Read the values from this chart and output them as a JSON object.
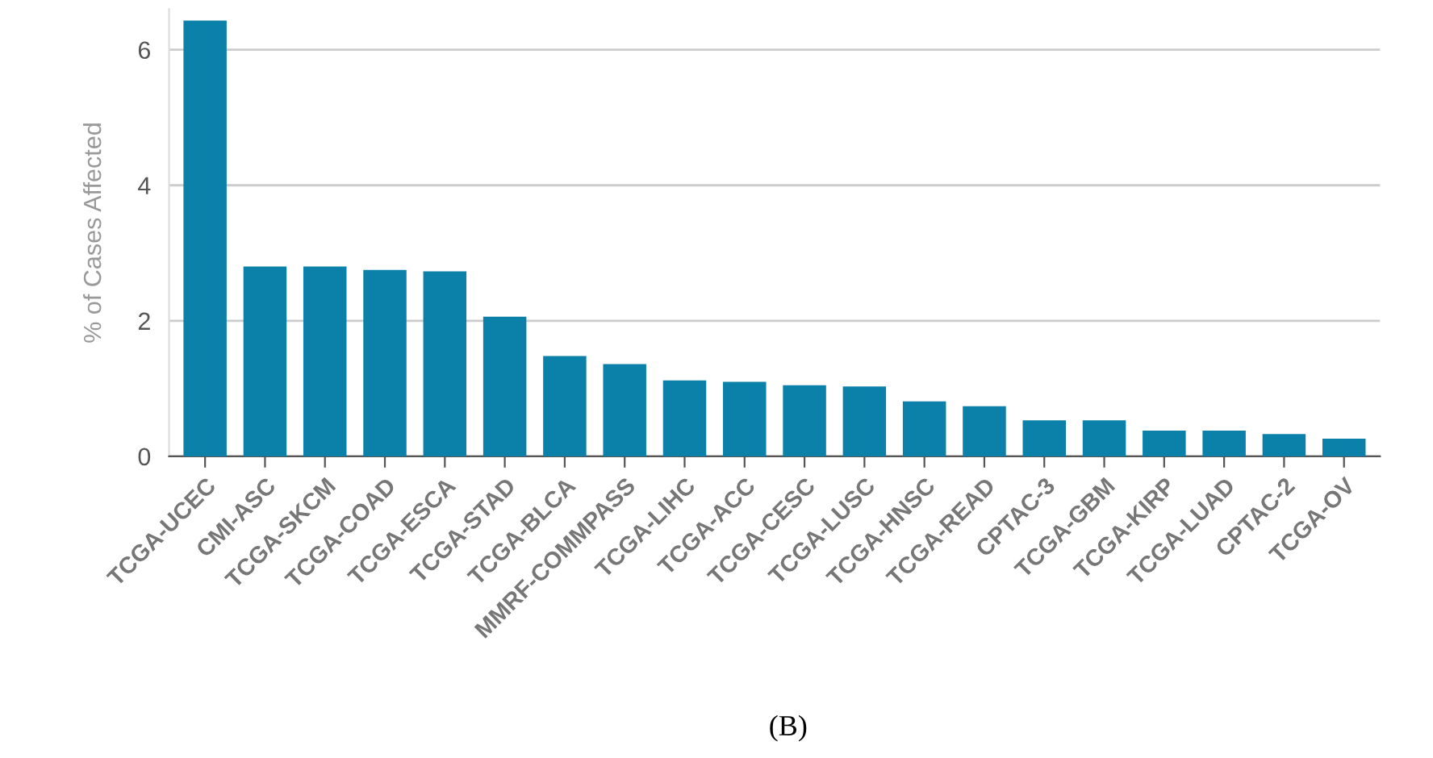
{
  "chart_data": {
    "type": "bar",
    "ylabel": "% of Cases Affected",
    "categories": [
      "TCGA-UCEC",
      "CMI-ASC",
      "TCGA-SKCM",
      "TCGA-COAD",
      "TCGA-ESCA",
      "TCGA-STAD",
      "TCGA-BLCA",
      "MMRF-COMMPASS",
      "TCGA-LIHC",
      "TCGA-ACC",
      "TCGA-CESC",
      "TCGA-LUSC",
      "TCGA-HNSC",
      "TCGA-READ",
      "CPTAC-3",
      "TCGA-GBM",
      "TCGA-KIRP",
      "TCGA-LUAD",
      "CPTAC-2",
      "TCGA-OV"
    ],
    "values": [
      6.43,
      2.8,
      2.8,
      2.75,
      2.73,
      2.06,
      1.48,
      1.36,
      1.12,
      1.1,
      1.05,
      1.03,
      0.81,
      0.74,
      0.53,
      0.53,
      0.38,
      0.38,
      0.33,
      0.26
    ],
    "color": "#0b80a8",
    "ylim": [
      0,
      6.6
    ],
    "yticks": [
      0,
      2,
      4,
      6
    ],
    "grid": "y",
    "annotations": [
      "(B)"
    ]
  }
}
